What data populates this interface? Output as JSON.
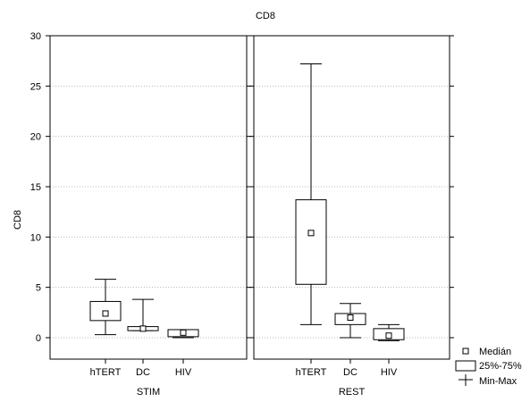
{
  "chart_data": {
    "type": "boxplot",
    "title": "CD8",
    "ylabel": "CD8",
    "ylim": [
      0,
      30
    ],
    "yticks": [
      0,
      5,
      10,
      15,
      20,
      25,
      30
    ],
    "grid": true,
    "legend_position": "bottom-right",
    "panels": [
      {
        "label": "STIM",
        "categories": [
          "hTERT",
          "DC",
          "HIV"
        ],
        "boxes": [
          {
            "category": "hTERT",
            "min": 0.3,
            "q1": 1.7,
            "median": 2.4,
            "q3": 3.6,
            "max": 5.8
          },
          {
            "category": "DC",
            "min": 0.7,
            "q1": 0.7,
            "median": 0.9,
            "q3": 1.1,
            "max": 3.8
          },
          {
            "category": "HIV",
            "min": 0.0,
            "q1": 0.1,
            "median": 0.5,
            "q3": 0.8,
            "max": 0.8
          }
        ]
      },
      {
        "label": "REST",
        "categories": [
          "hTERT",
          "DC",
          "HIV"
        ],
        "boxes": [
          {
            "category": "hTERT",
            "min": 1.3,
            "q1": 5.3,
            "median": 10.4,
            "q3": 13.7,
            "max": 27.2
          },
          {
            "category": "DC",
            "min": 0.0,
            "q1": 1.3,
            "median": 2.0,
            "q3": 2.4,
            "max": 3.4
          },
          {
            "category": "HIV",
            "min": -0.3,
            "q1": -0.2,
            "median": 0.2,
            "q3": 0.9,
            "max": 1.3
          }
        ]
      }
    ],
    "legend": [
      {
        "symbol": "median-square",
        "label": "Medián"
      },
      {
        "symbol": "box",
        "label": "25%-75%"
      },
      {
        "symbol": "whisker",
        "label": "Min-Max"
      }
    ]
  }
}
